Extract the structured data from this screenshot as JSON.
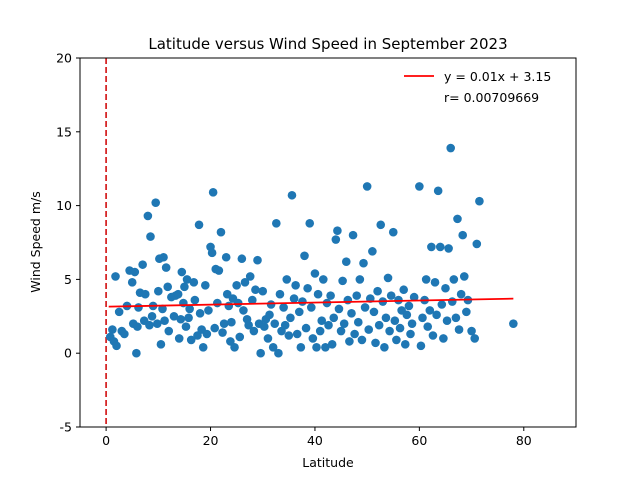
{
  "chart_data": {
    "type": "scatter",
    "title": "Latitude versus Wind Speed in September 2023",
    "xlabel": "Latitude",
    "ylabel": "Wind Speed m/s",
    "xlim": [
      -5,
      90
    ],
    "ylim": [
      -5,
      20
    ],
    "xticks": [
      0,
      20,
      40,
      60,
      80
    ],
    "yticks": [
      -5,
      0,
      5,
      10,
      15,
      20
    ],
    "grid": false,
    "legend_position": "top-right",
    "colors": {
      "points": "#1f77b4",
      "regression": "#ff0000",
      "vline": "#d62728"
    },
    "regression": {
      "label": "y = 0.01x + 3.15",
      "slope": 0.007,
      "intercept": 3.15,
      "x_range": [
        0.5,
        78
      ]
    },
    "correlation_label": "r= 0.00709669",
    "reference_line": {
      "x": 0,
      "style": "dashed"
    },
    "points": [
      [
        0.8,
        1.1
      ],
      [
        1.2,
        1.6
      ],
      [
        1.5,
        0.8
      ],
      [
        1.8,
        5.2
      ],
      [
        2.0,
        0.5
      ],
      [
        2.5,
        2.8
      ],
      [
        3.0,
        1.5
      ],
      [
        3.5,
        1.3
      ],
      [
        4.0,
        3.2
      ],
      [
        4.5,
        5.6
      ],
      [
        5.0,
        4.8
      ],
      [
        5.2,
        2.0
      ],
      [
        5.5,
        5.5
      ],
      [
        5.8,
        0.0
      ],
      [
        6.0,
        1.8
      ],
      [
        6.2,
        3.1
      ],
      [
        6.5,
        4.1
      ],
      [
        7.0,
        6.0
      ],
      [
        7.3,
        2.2
      ],
      [
        7.5,
        4.0
      ],
      [
        8.0,
        9.3
      ],
      [
        8.3,
        1.9
      ],
      [
        8.5,
        7.9
      ],
      [
        8.8,
        2.5
      ],
      [
        9.0,
        3.2
      ],
      [
        9.5,
        10.2
      ],
      [
        9.8,
        2.0
      ],
      [
        10.0,
        4.2
      ],
      [
        10.2,
        6.4
      ],
      [
        10.5,
        0.6
      ],
      [
        10.8,
        3.0
      ],
      [
        11.0,
        6.5
      ],
      [
        11.2,
        2.2
      ],
      [
        11.5,
        5.8
      ],
      [
        11.8,
        4.5
      ],
      [
        12.0,
        1.5
      ],
      [
        12.5,
        3.8
      ],
      [
        13.0,
        2.5
      ],
      [
        13.3,
        3.9
      ],
      [
        13.8,
        4.0
      ],
      [
        14.0,
        1.0
      ],
      [
        14.3,
        2.3
      ],
      [
        14.5,
        5.5
      ],
      [
        14.8,
        3.4
      ],
      [
        15.0,
        4.5
      ],
      [
        15.3,
        1.8
      ],
      [
        15.5,
        5.0
      ],
      [
        15.8,
        2.4
      ],
      [
        16.0,
        3.0
      ],
      [
        16.3,
        0.9
      ],
      [
        16.8,
        4.8
      ],
      [
        17.0,
        3.6
      ],
      [
        17.5,
        1.2
      ],
      [
        17.8,
        8.7
      ],
      [
        18.0,
        2.7
      ],
      [
        18.3,
        1.6
      ],
      [
        18.6,
        0.4
      ],
      [
        19.0,
        4.6
      ],
      [
        19.3,
        1.3
      ],
      [
        19.6,
        2.9
      ],
      [
        20.0,
        7.2
      ],
      [
        20.3,
        6.8
      ],
      [
        20.5,
        10.9
      ],
      [
        20.8,
        1.7
      ],
      [
        21.0,
        5.7
      ],
      [
        21.3,
        3.4
      ],
      [
        21.6,
        5.6
      ],
      [
        22.0,
        8.2
      ],
      [
        22.3,
        1.4
      ],
      [
        22.6,
        2.0
      ],
      [
        23.0,
        6.5
      ],
      [
        23.2,
        4.0
      ],
      [
        23.5,
        3.2
      ],
      [
        23.8,
        0.8
      ],
      [
        24.0,
        2.1
      ],
      [
        24.3,
        3.7
      ],
      [
        24.6,
        0.4
      ],
      [
        25.0,
        4.6
      ],
      [
        25.3,
        3.4
      ],
      [
        25.6,
        1.1
      ],
      [
        26.0,
        6.4
      ],
      [
        26.3,
        2.9
      ],
      [
        26.6,
        4.8
      ],
      [
        27.0,
        2.3
      ],
      [
        27.3,
        1.9
      ],
      [
        27.6,
        5.2
      ],
      [
        28.0,
        3.6
      ],
      [
        28.3,
        1.5
      ],
      [
        28.6,
        4.3
      ],
      [
        29.0,
        6.3
      ],
      [
        29.3,
        2.0
      ],
      [
        29.6,
        0.0
      ],
      [
        30.0,
        4.2
      ],
      [
        30.3,
        1.8
      ],
      [
        30.6,
        2.3
      ],
      [
        31.0,
        1.0
      ],
      [
        31.3,
        2.6
      ],
      [
        31.6,
        3.3
      ],
      [
        32.0,
        0.4
      ],
      [
        32.3,
        2.0
      ],
      [
        32.6,
        8.8
      ],
      [
        33.0,
        0.0
      ],
      [
        33.3,
        4.0
      ],
      [
        33.6,
        1.5
      ],
      [
        34.0,
        3.1
      ],
      [
        34.3,
        1.9
      ],
      [
        34.6,
        5.0
      ],
      [
        35.0,
        1.2
      ],
      [
        35.3,
        2.4
      ],
      [
        35.6,
        10.7
      ],
      [
        36.0,
        3.7
      ],
      [
        36.3,
        4.6
      ],
      [
        36.6,
        1.3
      ],
      [
        37.0,
        2.8
      ],
      [
        37.3,
        0.4
      ],
      [
        37.6,
        3.5
      ],
      [
        38.0,
        6.6
      ],
      [
        38.3,
        1.7
      ],
      [
        38.6,
        4.4
      ],
      [
        39.0,
        8.8
      ],
      [
        39.3,
        3.1
      ],
      [
        39.6,
        1.0
      ],
      [
        40.0,
        5.4
      ],
      [
        40.3,
        0.4
      ],
      [
        40.6,
        4.0
      ],
      [
        41.0,
        1.5
      ],
      [
        41.3,
        2.2
      ],
      [
        41.6,
        5.0
      ],
      [
        42.0,
        0.4
      ],
      [
        42.3,
        3.4
      ],
      [
        42.6,
        1.9
      ],
      [
        43.0,
        3.9
      ],
      [
        43.3,
        0.6
      ],
      [
        43.6,
        2.4
      ],
      [
        44.0,
        7.7
      ],
      [
        44.3,
        8.3
      ],
      [
        44.6,
        3.0
      ],
      [
        45.0,
        1.5
      ],
      [
        45.3,
        4.9
      ],
      [
        45.6,
        2.0
      ],
      [
        46.0,
        6.2
      ],
      [
        46.3,
        3.6
      ],
      [
        46.6,
        0.8
      ],
      [
        47.0,
        2.7
      ],
      [
        47.3,
        8.0
      ],
      [
        47.6,
        1.3
      ],
      [
        48.0,
        3.9
      ],
      [
        48.3,
        2.1
      ],
      [
        48.6,
        5.0
      ],
      [
        49.0,
        0.9
      ],
      [
        49.3,
        6.1
      ],
      [
        49.6,
        3.1
      ],
      [
        50.0,
        11.3
      ],
      [
        50.3,
        1.6
      ],
      [
        50.6,
        3.7
      ],
      [
        51.0,
        6.9
      ],
      [
        51.3,
        2.8
      ],
      [
        51.6,
        0.7
      ],
      [
        52.0,
        4.2
      ],
      [
        52.3,
        1.9
      ],
      [
        52.6,
        8.7
      ],
      [
        53.0,
        3.5
      ],
      [
        53.3,
        0.4
      ],
      [
        53.6,
        2.4
      ],
      [
        54.0,
        5.1
      ],
      [
        54.3,
        1.5
      ],
      [
        54.6,
        3.9
      ],
      [
        55.0,
        8.2
      ],
      [
        55.3,
        2.2
      ],
      [
        55.6,
        0.9
      ],
      [
        56.0,
        3.6
      ],
      [
        56.3,
        1.7
      ],
      [
        56.6,
        2.9
      ],
      [
        57.0,
        4.3
      ],
      [
        57.3,
        0.6
      ],
      [
        57.6,
        2.6
      ],
      [
        58.0,
        3.2
      ],
      [
        58.3,
        1.3
      ],
      [
        58.6,
        2.0
      ],
      [
        59.0,
        3.8
      ],
      [
        60.0,
        11.3
      ],
      [
        60.3,
        0.5
      ],
      [
        60.6,
        2.4
      ],
      [
        61.0,
        3.6
      ],
      [
        61.3,
        5.0
      ],
      [
        61.6,
        1.8
      ],
      [
        62.0,
        2.9
      ],
      [
        62.3,
        7.2
      ],
      [
        62.6,
        1.2
      ],
      [
        63.0,
        4.8
      ],
      [
        63.3,
        2.6
      ],
      [
        63.6,
        11.0
      ],
      [
        64.0,
        7.2
      ],
      [
        64.3,
        3.3
      ],
      [
        64.6,
        1.0
      ],
      [
        65.0,
        4.4
      ],
      [
        65.3,
        2.2
      ],
      [
        65.6,
        7.1
      ],
      [
        66.0,
        13.9
      ],
      [
        66.3,
        3.5
      ],
      [
        66.6,
        5.0
      ],
      [
        67.0,
        2.4
      ],
      [
        67.3,
        9.1
      ],
      [
        67.6,
        1.6
      ],
      [
        68.0,
        4.0
      ],
      [
        68.3,
        8.0
      ],
      [
        68.6,
        5.2
      ],
      [
        69.0,
        2.8
      ],
      [
        69.3,
        3.6
      ],
      [
        70.0,
        1.5
      ],
      [
        70.6,
        1.0
      ],
      [
        71.0,
        7.4
      ],
      [
        71.5,
        10.3
      ],
      [
        78.0,
        2.0
      ]
    ]
  }
}
